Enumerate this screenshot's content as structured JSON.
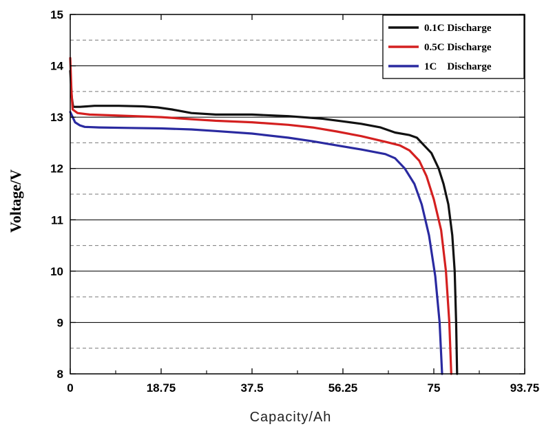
{
  "chart_data": {
    "type": "line",
    "title": "",
    "xlabel": "Capacity/Ah",
    "ylabel": "Voltage/V",
    "xlim": [
      0,
      93.75
    ],
    "ylim": [
      8,
      15
    ],
    "x_ticks": [
      0,
      18.75,
      37.5,
      56.25,
      75,
      93.75
    ],
    "x_tick_labels": [
      "0",
      "18.75",
      "37.5",
      "56.25",
      "75",
      "93.75"
    ],
    "y_ticks": [
      8,
      9,
      10,
      11,
      12,
      13,
      14,
      15
    ],
    "y_tick_labels": [
      "8",
      "9",
      "10",
      "11",
      "12",
      "13",
      "14",
      "15"
    ],
    "grid": {
      "major_solid": true,
      "minor_dashed": true
    },
    "legend": {
      "placement": "top-right"
    },
    "series": [
      {
        "name": "0.1C Discharge",
        "color": "#111111",
        "points": [
          [
            0,
            13.9
          ],
          [
            0.3,
            13.4
          ],
          [
            0.6,
            13.2
          ],
          [
            2,
            13.2
          ],
          [
            5,
            13.22
          ],
          [
            10,
            13.22
          ],
          [
            15,
            13.21
          ],
          [
            18,
            13.19
          ],
          [
            21,
            13.15
          ],
          [
            25,
            13.08
          ],
          [
            30,
            13.05
          ],
          [
            37.5,
            13.05
          ],
          [
            45,
            13.02
          ],
          [
            52,
            12.97
          ],
          [
            56,
            12.92
          ],
          [
            60,
            12.87
          ],
          [
            64,
            12.8
          ],
          [
            67,
            12.7
          ],
          [
            70,
            12.65
          ],
          [
            71.5,
            12.6
          ],
          [
            73,
            12.45
          ],
          [
            74.5,
            12.3
          ],
          [
            76,
            12.0
          ],
          [
            77,
            11.7
          ],
          [
            78,
            11.3
          ],
          [
            78.8,
            10.7
          ],
          [
            79.3,
            10.0
          ],
          [
            79.6,
            9.0
          ],
          [
            79.8,
            8.0
          ]
        ]
      },
      {
        "name": "0.5C Discharge",
        "color": "#d42020",
        "points": [
          [
            0,
            14.15
          ],
          [
            0.25,
            13.5
          ],
          [
            0.5,
            13.15
          ],
          [
            1.5,
            13.08
          ],
          [
            4,
            13.05
          ],
          [
            10,
            13.03
          ],
          [
            18.75,
            13.0
          ],
          [
            25,
            12.96
          ],
          [
            30,
            12.93
          ],
          [
            37.5,
            12.9
          ],
          [
            45,
            12.85
          ],
          [
            50,
            12.8
          ],
          [
            55,
            12.72
          ],
          [
            60,
            12.63
          ],
          [
            65,
            12.52
          ],
          [
            68,
            12.45
          ],
          [
            70,
            12.35
          ],
          [
            72,
            12.15
          ],
          [
            73.5,
            11.85
          ],
          [
            75,
            11.4
          ],
          [
            76.5,
            10.8
          ],
          [
            77.5,
            10.0
          ],
          [
            78.2,
            9.0
          ],
          [
            78.6,
            8.0
          ]
        ]
      },
      {
        "name": "1C    Discharge",
        "color": "#2a2aa0",
        "points": [
          [
            0,
            13.1
          ],
          [
            0.5,
            13.0
          ],
          [
            1,
            12.9
          ],
          [
            2,
            12.84
          ],
          [
            3,
            12.81
          ],
          [
            6,
            12.8
          ],
          [
            12,
            12.79
          ],
          [
            18.75,
            12.78
          ],
          [
            25,
            12.76
          ],
          [
            30,
            12.73
          ],
          [
            37.5,
            12.68
          ],
          [
            45,
            12.6
          ],
          [
            50,
            12.53
          ],
          [
            55,
            12.45
          ],
          [
            60,
            12.37
          ],
          [
            65,
            12.28
          ],
          [
            67,
            12.2
          ],
          [
            69,
            12.0
          ],
          [
            71,
            11.7
          ],
          [
            72.5,
            11.3
          ],
          [
            74,
            10.7
          ],
          [
            75.3,
            9.9
          ],
          [
            76.2,
            9.0
          ],
          [
            76.7,
            8.0
          ]
        ]
      }
    ]
  }
}
